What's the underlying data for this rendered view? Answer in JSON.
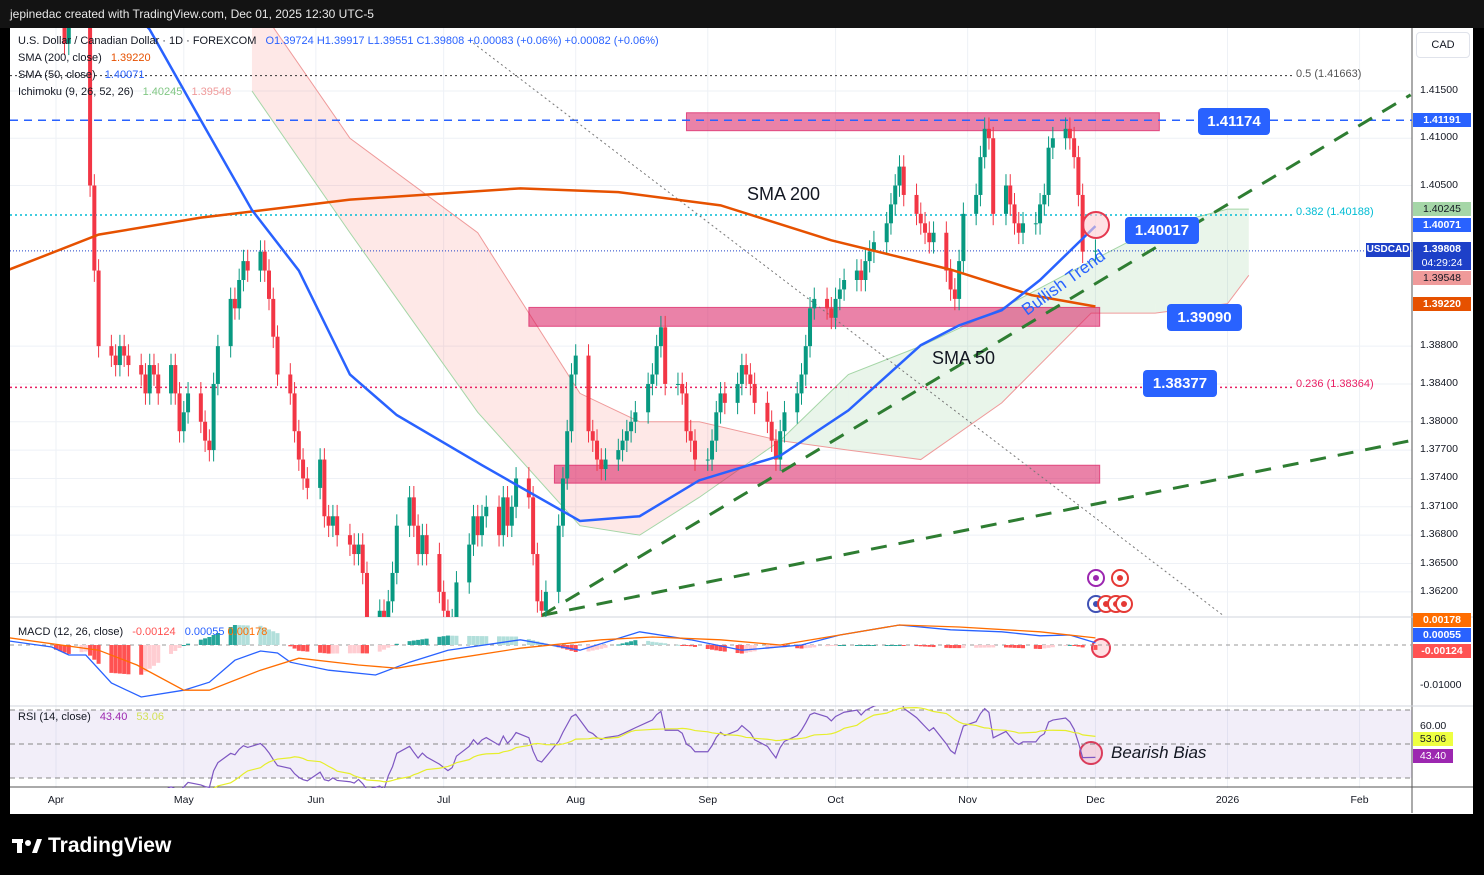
{
  "header": {
    "credit": "jepinedac created with TradingView.com, Dec 01, 2025 12:30 UTC-5"
  },
  "legend": {
    "symbol": "U.S. Dollar / Canadian Dollar · 1D · FOREXCOM",
    "ohlc": "O1.39724  H1.39917  L1.39551  C1.39808  +0.00083 (+0.06%)  +0.00082 (+0.06%)",
    "sma200_label": "SMA (200, close)",
    "sma200_value": "1.39220",
    "sma50_label": "SMA (50, close)",
    "sma50_value": "1.40071",
    "ichimoku_label": "Ichimoku (9, 26, 52, 26)",
    "ichimoku_a": "1.40245",
    "ichimoku_b": "1.39548",
    "macd_label": "MACD (12, 26, close)",
    "macd_hist": "-0.00124",
    "macd_line": "0.00055",
    "macd_signal": "0.00178",
    "rsi_label": "RSI (14, close)",
    "rsi_value": "43.40",
    "rsi_ma": "53.06"
  },
  "currency_button": "CAD",
  "annotations": {
    "sma200": "SMA 200",
    "sma50": "SMA 50",
    "bullish_trend": "Bullish Trend",
    "bearish_bias": "Bearish Bias",
    "box1": "1.41174",
    "box2": "1.40017",
    "box3": "1.39090",
    "box4": "1.38377"
  },
  "fib": {
    "f05": "0.5 (1.41663)",
    "f0382": "0.382 (1.40188)",
    "f0236": "0.236 (1.38364)"
  },
  "price_axis": {
    "ticks": [
      "1.41500",
      "1.41000",
      "1.40500",
      "1.38800",
      "1.38400",
      "1.38000",
      "1.37700",
      "1.37400",
      "1.37100",
      "1.36800",
      "1.36500",
      "1.36200"
    ],
    "labels": {
      "res": "1.41191",
      "ich_a": "1.40245",
      "sma50": "1.40071",
      "last": "1.39808",
      "countdown": "04:29:24",
      "ich_b": "1.39548",
      "sma200": "1.39220",
      "symbol_tag": "USDCAD"
    },
    "macd_labels": {
      "signal": "0.00178",
      "macd": "0.00055",
      "hist": "-0.00124",
      "tick": "-0.01000"
    },
    "rsi_labels": {
      "tick": "60.00",
      "ma": "53.06",
      "rsi": "43.40"
    }
  },
  "time_axis": [
    "Apr",
    "May",
    "Jun",
    "Jul",
    "Aug",
    "Sep",
    "Oct",
    "Nov",
    "Dec",
    "2026",
    "Feb"
  ],
  "footer": {
    "brand": "TradingView"
  },
  "colors": {
    "up": "#089981",
    "down": "#f23645",
    "sma200": "#e65100",
    "sma50": "#2962ff",
    "accent": "#2962ff",
    "zone": "#d81b60",
    "trend": "#2e7d32"
  },
  "chart_data": {
    "type": "candlestick",
    "symbol": "USDCAD",
    "interval": "1D",
    "ylim": [
      1.3595,
      1.4215
    ],
    "grid": true,
    "closes_daily_from_apr": [
      1.433,
      1.429,
      1.42,
      1.428,
      1.424,
      1.429,
      1.405,
      1.396,
      1.388,
      1.387,
      1.386,
      1.388,
      1.387,
      1.386,
      1.385,
      1.383,
      1.386,
      1.385,
      1.383,
      1.386,
      1.383,
      1.379,
      1.381,
      1.383,
      1.38,
      1.378,
      1.377,
      1.384,
      1.388,
      1.393,
      1.392,
      1.395,
      1.397,
      1.396,
      1.398,
      1.396,
      1.393,
      1.389,
      1.385,
      1.383,
      1.379,
      1.376,
      1.374,
      1.373,
      1.376,
      1.37,
      1.369,
      1.37,
      1.368,
      1.367,
      1.366,
      1.367,
      1.364,
      1.359,
      1.36,
      1.357,
      1.361,
      1.364,
      1.369,
      1.372,
      1.369,
      1.366,
      1.368,
      1.366,
      1.362,
      1.36,
      1.358,
      1.359,
      1.363,
      1.367,
      1.37,
      1.368,
      1.37,
      1.371,
      1.368,
      1.372,
      1.369,
      1.371,
      1.374,
      1.372,
      1.366,
      1.361,
      1.36,
      1.362,
      1.369,
      1.374,
      1.379,
      1.385,
      1.387,
      1.379,
      1.378,
      1.376,
      1.375,
      1.376,
      1.377,
      1.378,
      1.379,
      1.38,
      1.381,
      1.384,
      1.385,
      1.388,
      1.39,
      1.384,
      1.384,
      1.383,
      1.379,
      1.378,
      1.376,
      1.376,
      1.378,
      1.381,
      1.383,
      1.382,
      1.384,
      1.386,
      1.385,
      1.384,
      1.382,
      1.38,
      1.378,
      1.376,
      1.379,
      1.381,
      1.383,
      1.385,
      1.388,
      1.392,
      1.393,
      1.392,
      1.391,
      1.393,
      1.394,
      1.395,
      1.396,
      1.395,
      1.397,
      1.398,
      1.399,
      1.401,
      1.403,
      1.405,
      1.407,
      1.404,
      1.402,
      1.401,
      1.4,
      1.399,
      1.4,
      1.396,
      1.394,
      1.393,
      1.397,
      1.402,
      1.404,
      1.408,
      1.411,
      1.41,
      1.402,
      1.405,
      1.403,
      1.401,
      1.4,
      1.401,
      1.401,
      1.403,
      1.404,
      1.409,
      1.41,
      1.411,
      1.41,
      1.408,
      1.404,
      1.398,
      1.3981
    ],
    "sma200": [
      [
        "2025-03-21",
        1.3961
      ],
      [
        "2025-04-11",
        1.3998
      ],
      [
        "2025-05-05",
        1.4016
      ],
      [
        "2025-06-09",
        1.4035
      ],
      [
        "2025-07-19",
        1.4047
      ],
      [
        "2025-08-11",
        1.4043
      ],
      [
        "2025-09-04",
        1.4029
      ],
      [
        "2025-09-30",
        1.3992
      ],
      [
        "2025-10-28",
        1.3961
      ],
      [
        "2025-11-16",
        1.3934
      ],
      [
        "2025-12-01",
        1.3922
      ]
    ],
    "sma50": [
      [
        "2025-04-16",
        1.425
      ],
      [
        "2025-04-23",
        1.4215
      ],
      [
        "2025-05-05",
        1.4119
      ],
      [
        "2025-05-17",
        1.4024
      ],
      [
        "2025-05-28",
        1.396
      ],
      [
        "2025-06-09",
        1.385
      ],
      [
        "2025-06-20",
        1.3807
      ],
      [
        "2025-07-10",
        1.3754
      ],
      [
        "2025-08-02",
        1.3695
      ],
      [
        "2025-08-16",
        1.37
      ],
      [
        "2025-08-30",
        1.3738
      ],
      [
        "2025-09-18",
        1.3764
      ],
      [
        "2025-10-04",
        1.3812
      ],
      [
        "2025-10-21",
        1.3881
      ],
      [
        "2025-10-30",
        1.3902
      ],
      [
        "2025-11-09",
        1.3918
      ],
      [
        "2025-11-18",
        1.395
      ],
      [
        "2025-12-01",
        1.4007
      ]
    ],
    "ichimoku_cloud": [
      [
        "2025-05-17",
        1.415,
        1.425
      ],
      [
        "2025-06-09",
        1.4,
        1.41
      ],
      [
        "2025-07-09",
        1.381,
        1.4
      ],
      [
        "2025-08-02",
        1.369,
        1.383
      ],
      [
        "2025-08-16",
        1.368,
        1.38
      ],
      [
        "2025-08-30",
        1.372,
        1.38
      ],
      [
        "2025-09-18",
        1.378,
        1.378
      ],
      [
        "2025-10-04",
        1.385,
        1.377
      ],
      [
        "2025-10-21",
        1.388,
        1.376
      ],
      [
        "2025-11-09",
        1.392,
        1.382
      ],
      [
        "2025-11-30",
        1.397,
        1.3915
      ],
      [
        "2025-12-15",
        1.4005,
        1.3915
      ],
      [
        "2026-01-01",
        1.4025,
        1.3925
      ],
      [
        "2026-01-06",
        1.4025,
        1.3955
      ]
    ],
    "levels": {
      "resistance": 1.41191,
      "fib_05": 1.41663,
      "fib_0382": 1.40188,
      "fib_0236": 1.38364,
      "last": 1.39808
    },
    "zones": [
      [
        "2025-08-27",
        "2025-12-16",
        1.4127,
        1.4108
      ],
      [
        "2025-07-21",
        "2025-12-02",
        1.3921,
        1.3901
      ],
      [
        "2025-07-27",
        "2025-12-02",
        1.3754,
        1.3735
      ]
    ],
    "trendlines": [
      {
        "style": "dashed-green",
        "from": [
          "2025-07-24",
          1.3595
        ],
        "to": [
          "2026-02-13",
          1.4146
        ]
      },
      {
        "style": "dashed-green",
        "from": [
          "2025-07-24",
          1.3595
        ],
        "to": [
          "2026-02-13",
          1.378
        ]
      },
      {
        "style": "dotted-gray",
        "from": [
          "2025-07-07",
          1.4204
        ],
        "to": [
          "2025-12-31",
          1.3595
        ]
      }
    ],
    "macd": [
      [
        "2025-03-21",
        0.001
      ],
      [
        "2025-03-31",
        -0.0005
      ],
      [
        "2025-04-04",
        -0.0025
      ],
      [
        "2025-04-08",
        -0.0025
      ],
      [
        "2025-04-14",
        -0.0095
      ],
      [
        "2025-04-21",
        -0.013
      ],
      [
        "2025-05-01",
        -0.0113
      ],
      [
        "2025-05-07",
        -0.0093
      ],
      [
        "2025-05-13",
        -0.0038
      ],
      [
        "2025-05-19",
        -0.0015
      ],
      [
        "2025-05-23",
        -0.002
      ],
      [
        "2025-05-26",
        -0.0043
      ],
      [
        "2025-06-04",
        -0.0063
      ],
      [
        "2025-06-15",
        -0.0075
      ],
      [
        "2025-06-23",
        -0.0043
      ],
      [
        "2025-07-02",
        -0.0013
      ],
      [
        "2025-07-19",
        0.0013
      ],
      [
        "2025-08-02",
        -0.0013
      ],
      [
        "2025-08-16",
        0.0033
      ],
      [
        "2025-08-28",
        0.0013
      ],
      [
        "2025-09-09",
        -0.0013
      ],
      [
        "2025-09-23",
        0.0
      ],
      [
        "2025-10-02",
        0.0025
      ],
      [
        "2025-10-16",
        0.005
      ],
      [
        "2025-10-28",
        0.0038
      ],
      [
        "2025-11-09",
        0.0033
      ],
      [
        "2025-11-18",
        0.0023
      ],
      [
        "2025-11-25",
        0.0025
      ],
      [
        "2025-12-01",
        0.00055
      ]
    ],
    "macd_signal": [
      [
        "2025-03-21",
        0.0018
      ],
      [
        "2025-04-11",
        -0.0013
      ],
      [
        "2025-04-20",
        -0.005
      ],
      [
        "2025-05-01",
        -0.0113
      ],
      [
        "2025-05-07",
        -0.0113
      ],
      [
        "2025-05-19",
        -0.0063
      ],
      [
        "2025-05-28",
        -0.0033
      ],
      [
        "2025-06-11",
        -0.005
      ],
      [
        "2025-06-20",
        -0.0058
      ],
      [
        "2025-07-04",
        -0.0033
      ],
      [
        "2025-07-19",
        -0.0008
      ],
      [
        "2025-08-07",
        0.0013
      ],
      [
        "2025-08-19",
        0.002
      ],
      [
        "2025-09-04",
        0.0013
      ],
      [
        "2025-09-18",
        0.0
      ],
      [
        "2025-10-02",
        0.0025
      ],
      [
        "2025-10-16",
        0.005
      ],
      [
        "2025-10-30",
        0.0045
      ],
      [
        "2025-11-18",
        0.0033
      ],
      [
        "2025-12-01",
        0.00178
      ]
    ],
    "rsi_bands": [
      70,
      50,
      30
    ]
  }
}
